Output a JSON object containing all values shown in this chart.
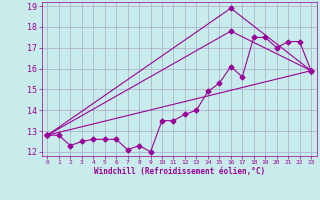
{
  "xlabel": "Windchill (Refroidissement éolien,°C)",
  "bg_color": "#c8ecec",
  "grid_color": "#aaaacc",
  "line_color": "#990099",
  "xlim": [
    -0.5,
    23.5
  ],
  "ylim": [
    11.8,
    19.2
  ],
  "xticks": [
    0,
    1,
    2,
    3,
    4,
    5,
    6,
    7,
    8,
    9,
    10,
    11,
    12,
    13,
    14,
    15,
    16,
    17,
    18,
    19,
    20,
    21,
    22,
    23
  ],
  "yticks": [
    12,
    13,
    14,
    15,
    16,
    17,
    18,
    19
  ],
  "series1_x": [
    0,
    1,
    2,
    3,
    4,
    5,
    6,
    7,
    8,
    9,
    10,
    11,
    12,
    13,
    14,
    15,
    16,
    17,
    18,
    19,
    20,
    21,
    22,
    23
  ],
  "series1_y": [
    12.8,
    12.8,
    12.3,
    12.5,
    12.6,
    12.6,
    12.6,
    12.1,
    12.3,
    12.0,
    13.5,
    13.5,
    13.8,
    14.0,
    14.9,
    15.3,
    16.1,
    15.6,
    17.5,
    17.5,
    17.0,
    17.3,
    17.3,
    15.9
  ],
  "trend1_x": [
    0,
    23
  ],
  "trend1_y": [
    12.8,
    15.9
  ],
  "trend2_x": [
    0,
    16,
    23
  ],
  "trend2_y": [
    12.8,
    17.8,
    15.9
  ],
  "trend3_x": [
    0,
    16,
    23
  ],
  "trend3_y": [
    12.8,
    18.9,
    15.9
  ],
  "marker": "D",
  "markersize": 2.5,
  "linewidth": 0.8
}
